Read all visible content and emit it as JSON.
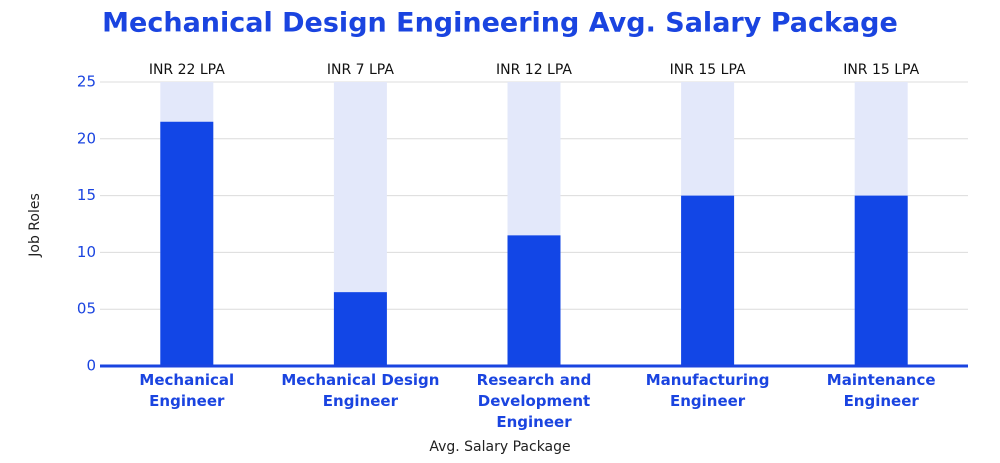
{
  "chart_data": {
    "type": "bar",
    "title": "Mechanical Design Engineering Avg. Salary Package",
    "x_label": "Avg. Salary Package",
    "y_label": "Job Roles",
    "categories": [
      "Mechanical Engineer",
      "Mechanical Design Engineer",
      "Research and Development Engineer",
      "Manufacturing Engineer",
      "Maintenance Engineer"
    ],
    "values": [
      21.5,
      6.5,
      11.5,
      15,
      15
    ],
    "value_labels": [
      "INR 22 LPA",
      "INR 7 LPA",
      "INR 12 LPA",
      "INR 15 LPA",
      "INR 15 LPA"
    ],
    "color": "#1246e6",
    "track_color": "#e3e8fa",
    "ylim": [
      0,
      25
    ],
    "yticks": [
      0,
      {
        "value": 5,
        "label": "05"
      },
      10,
      15,
      20,
      25
    ],
    "grid": true
  }
}
